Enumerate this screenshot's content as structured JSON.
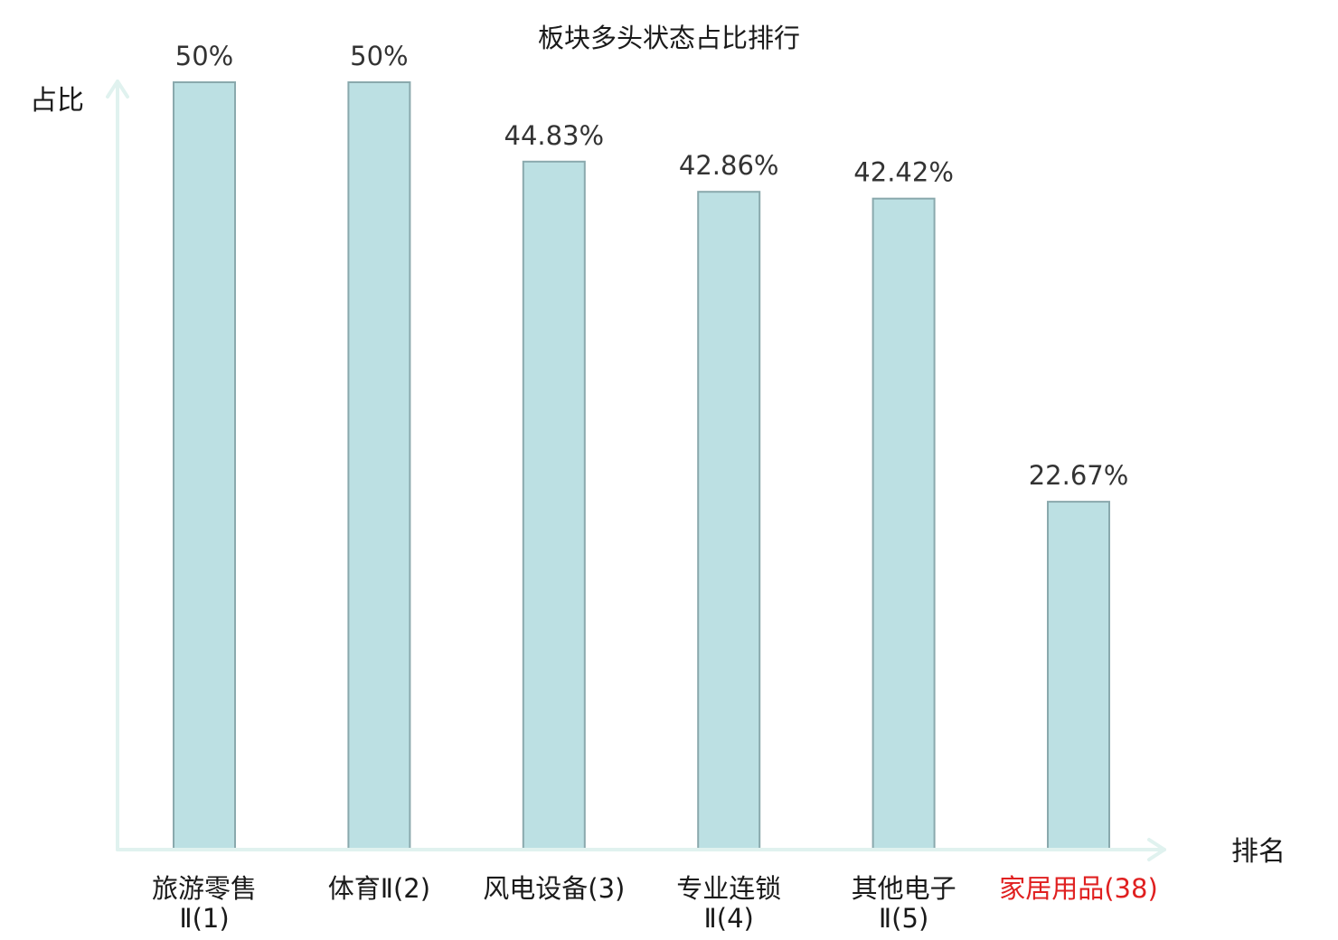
{
  "chart_data": {
    "type": "bar",
    "title": "板块多头状态占比排行",
    "ylabel": "占比",
    "xlabel": "排名",
    "ylim": [
      0,
      50
    ],
    "grid": false,
    "categories": [
      {
        "lines": [
          "旅游零售",
          "Ⅱ(1)"
        ],
        "highlight": false
      },
      {
        "lines": [
          "体育Ⅱ(2)"
        ],
        "highlight": false
      },
      {
        "lines": [
          "风电设备(3)"
        ],
        "highlight": false
      },
      {
        "lines": [
          "专业连锁",
          "Ⅱ(4)"
        ],
        "highlight": false
      },
      {
        "lines": [
          "其他电子",
          "Ⅱ(5)"
        ],
        "highlight": false
      },
      {
        "lines": [
          "家居用品(38)"
        ],
        "highlight": true
      }
    ],
    "values": [
      50,
      50,
      44.83,
      42.86,
      42.42,
      22.67
    ],
    "value_labels": [
      "50%",
      "50%",
      "44.83%",
      "42.86%",
      "42.42%",
      "22.67%"
    ]
  },
  "colors": {
    "bar_fill": "#bce0e3",
    "bar_stroke": "#8aa9ad",
    "axis": "#e0f2ef",
    "label_default": "#1a1a1a",
    "label_highlight": "#e02020"
  }
}
